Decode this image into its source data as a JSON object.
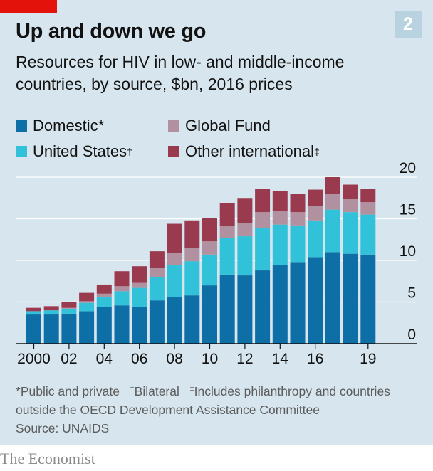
{
  "header": {
    "title": "Up and down we go",
    "subtitle": "Resources for HIV in low- and middle-income countries, by source, $bn, 2016 prices",
    "chart_number": "2"
  },
  "colors": {
    "background": "#d7e6ee",
    "domestic": "#0e6fa6",
    "united_states": "#31c1d8",
    "global_fund": "#b1909f",
    "other_international": "#9a3a4f",
    "brand_red": "#e3120b"
  },
  "legend": [
    {
      "label": "Domestic",
      "mark": "*",
      "color": "#0e6fa6"
    },
    {
      "label": "Global Fund",
      "mark": "",
      "color": "#b1909f"
    },
    {
      "label": "United States",
      "mark": "†",
      "color": "#31c1d8"
    },
    {
      "label": "Other international",
      "mark": "‡",
      "color": "#9a3a4f"
    }
  ],
  "chart_data": {
    "type": "bar",
    "stacked": true,
    "title": "Up and down we go",
    "subtitle": "Resources for HIV in low- and middle-income countries, by source, $bn, 2016 prices",
    "xlabel": "",
    "ylabel": "$bn, 2016 prices",
    "ylim": [
      0,
      20
    ],
    "yticks": [
      0,
      5,
      10,
      15,
      20
    ],
    "grid": true,
    "categories": [
      "2000",
      "2001",
      "2002",
      "2003",
      "2004",
      "2005",
      "2006",
      "2007",
      "2008",
      "2009",
      "2010",
      "2011",
      "2012",
      "2013",
      "2014",
      "2015",
      "2016",
      "2017",
      "2018",
      "2019"
    ],
    "xtick_labels": [
      "2000",
      "",
      "02",
      "",
      "04",
      "",
      "06",
      "",
      "08",
      "",
      "10",
      "",
      "12",
      "",
      "14",
      "",
      "16",
      "",
      "",
      "19"
    ],
    "series": [
      {
        "name": "Domestic",
        "values": [
          3.5,
          3.5,
          3.6,
          3.9,
          4.4,
          4.6,
          4.4,
          5.2,
          5.6,
          5.8,
          7.0,
          8.3,
          8.2,
          8.8,
          9.4,
          9.8,
          10.4,
          11.0,
          10.8,
          10.7
        ]
      },
      {
        "name": "United States",
        "values": [
          0.4,
          0.5,
          0.6,
          1.0,
          1.2,
          1.7,
          2.3,
          2.8,
          3.8,
          4.1,
          3.7,
          4.4,
          4.7,
          5.1,
          4.9,
          4.4,
          4.4,
          5.1,
          5.0,
          4.8
        ]
      },
      {
        "name": "Global Fund",
        "values": [
          0.0,
          0.0,
          0.1,
          0.2,
          0.4,
          0.6,
          0.6,
          1.1,
          1.5,
          1.6,
          1.6,
          1.4,
          1.6,
          1.9,
          1.6,
          1.6,
          1.7,
          1.9,
          1.6,
          1.5
        ]
      },
      {
        "name": "Other international",
        "values": [
          0.4,
          0.5,
          0.7,
          1.0,
          1.1,
          1.8,
          2.0,
          2.0,
          3.5,
          3.3,
          2.8,
          2.8,
          3.0,
          2.8,
          2.4,
          2.2,
          2.0,
          2.0,
          1.7,
          1.6
        ]
      }
    ]
  },
  "footnotes": {
    "domestic_mark": "*",
    "domestic_text": "Public and private",
    "us_mark": "†",
    "us_text": "Bilateral",
    "other_mark": "‡",
    "other_text": "Includes philanthropy and countries outside the OECD Development Assistance Committee",
    "source": "Source: UNAIDS"
  },
  "brand": "The Economist"
}
